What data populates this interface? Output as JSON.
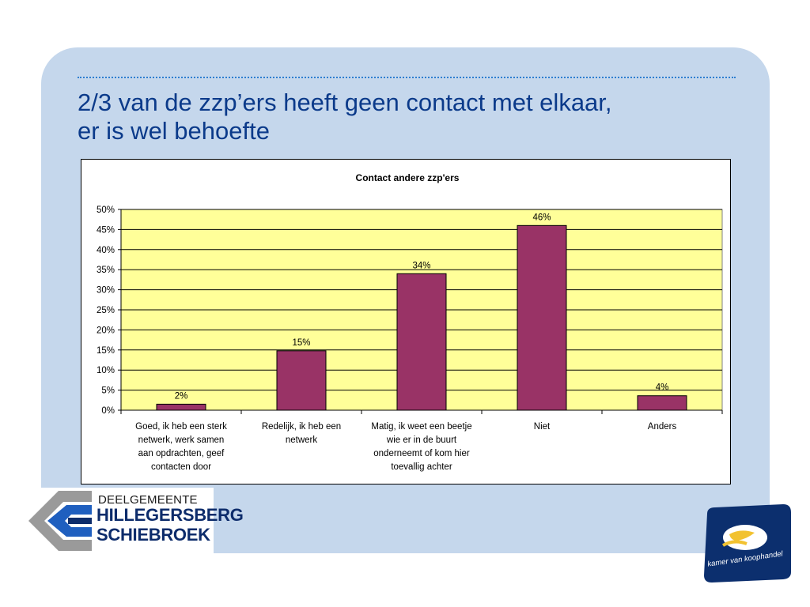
{
  "slide": {
    "title_line1": "2/3 van de zzp’ers heeft geen contact met elkaar,",
    "title_line2": "er is wel behoefte"
  },
  "chart_data": {
    "type": "bar",
    "title": "Contact andere zzp'ers",
    "categories": [
      "Goed, ik heb een sterk netwerk, werk samen aan opdrachten, geef contacten door",
      "Redelijk, ik heb een netwerk",
      "Matig, ik weet een beetje wie er in de buurt onderneemt of kom hier toevallig achter",
      "Niet",
      "Anders"
    ],
    "category_lines": [
      [
        "Goed, ik heb een sterk",
        "netwerk, werk samen",
        "aan opdrachten, geef",
        "contacten door"
      ],
      [
        "Redelijk, ik heb een",
        "netwerk"
      ],
      [
        "Matig, ik weet een beetje",
        "wie er in de buurt",
        "onderneemt of kom hier",
        "toevallig achter"
      ],
      [
        "Niet"
      ],
      [
        "Anders"
      ]
    ],
    "values": [
      2,
      15,
      34,
      46,
      4
    ],
    "value_labels": [
      "2%",
      "15%",
      "34%",
      "46%",
      "4%"
    ],
    "bar_heights_pct": [
      1.5,
      14.8,
      34,
      46,
      3.6
    ],
    "ylim": [
      0,
      50
    ],
    "yticks": [
      0,
      5,
      10,
      15,
      20,
      25,
      30,
      35,
      40,
      45,
      50
    ],
    "ytick_labels": [
      "0%",
      "5%",
      "10%",
      "15%",
      "20%",
      "25%",
      "30%",
      "35%",
      "40%",
      "45%",
      "50%"
    ],
    "xlabel": "",
    "ylabel": "",
    "grid": true,
    "colors": {
      "plot_bg": "#ffff99",
      "bar": "#993366"
    }
  },
  "logos": {
    "left": {
      "line1": "DEELGEMEENTE",
      "line2": "HILLEGERSBERG",
      "line3": "SCHIEBROEK"
    },
    "right": {
      "text": "kamer van koophandel"
    }
  }
}
